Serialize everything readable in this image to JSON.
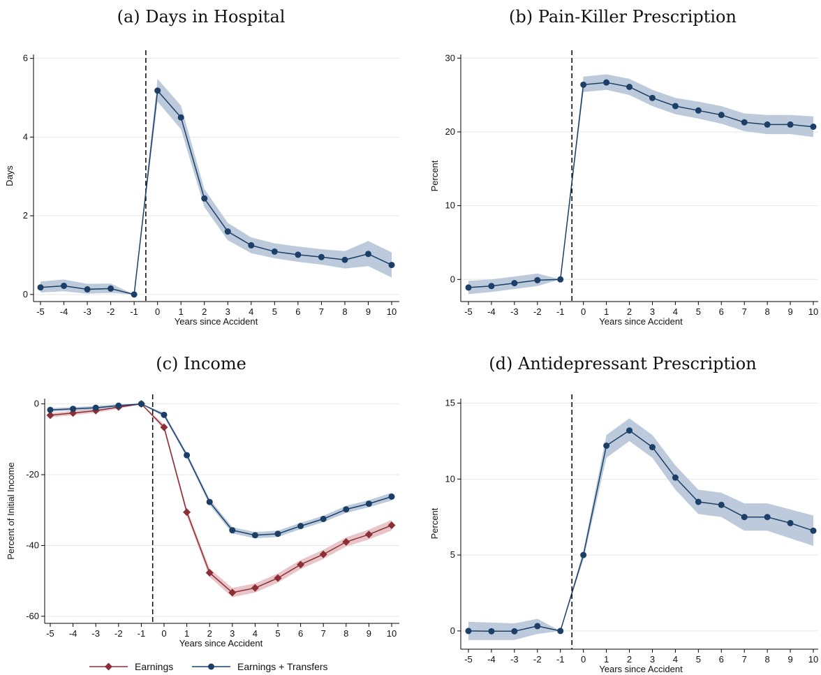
{
  "colors": {
    "navy": "#1b3f66",
    "navy_band": "#bccadb",
    "maroon": "#8b2e36",
    "maroon_band": "#e8c5c8",
    "grid": "#e6e6e6",
    "axis": "#000000"
  },
  "chart_data": [
    {
      "type": "line",
      "title": "(a) Days in Hospital",
      "xlabel": "Years since Accident",
      "ylabel": "Days",
      "ylim": [
        0,
        6
      ],
      "yticks": [
        0,
        2,
        4,
        6
      ],
      "x": [
        -5,
        -4,
        -3,
        -2,
        -1,
        0,
        1,
        2,
        3,
        4,
        5,
        6,
        7,
        8,
        9,
        10
      ],
      "event_line_x": -0.5,
      "grid": true,
      "legend": false,
      "series": [
        {
          "color": "navy",
          "marker": "circle",
          "values": [
            0.18,
            0.22,
            0.13,
            0.15,
            0.0,
            5.18,
            4.5,
            2.44,
            1.6,
            1.25,
            1.09,
            1.01,
            0.95,
            0.88,
            1.03,
            0.75
          ],
          "ci_low": [
            0.05,
            0.08,
            0.02,
            0.04,
            0.0,
            4.9,
            4.2,
            2.22,
            1.38,
            1.05,
            0.92,
            0.83,
            0.76,
            0.66,
            0.72,
            0.43
          ],
          "ci_high": [
            0.33,
            0.38,
            0.27,
            0.28,
            0.0,
            5.48,
            4.8,
            2.68,
            1.82,
            1.45,
            1.3,
            1.22,
            1.15,
            1.1,
            1.36,
            1.07
          ]
        }
      ]
    },
    {
      "type": "line",
      "title": "(b) Pain-Killer Prescription",
      "xlabel": "Years since Accident",
      "ylabel": "Percent",
      "ylim": [
        -3,
        30
      ],
      "yticks": [
        0,
        10,
        20,
        30
      ],
      "x": [
        -5,
        -4,
        -3,
        -2,
        -1,
        0,
        1,
        2,
        3,
        4,
        5,
        6,
        7,
        8,
        9,
        10
      ],
      "event_line_x": -0.5,
      "grid": true,
      "legend": false,
      "series": [
        {
          "color": "navy",
          "marker": "circle",
          "values": [
            -1.1,
            -0.9,
            -0.5,
            -0.1,
            0.0,
            26.4,
            26.7,
            26.1,
            24.6,
            23.5,
            22.9,
            22.3,
            21.3,
            21.0,
            21.0,
            20.7
          ],
          "ci_low": [
            -2.0,
            -1.7,
            -1.3,
            -0.9,
            0.0,
            25.4,
            25.7,
            25.0,
            23.5,
            22.4,
            21.8,
            21.1,
            20.1,
            19.7,
            19.7,
            19.3
          ],
          "ci_high": [
            -0.2,
            0.0,
            0.4,
            0.8,
            0.0,
            27.5,
            27.8,
            27.2,
            25.7,
            24.6,
            24.1,
            23.5,
            22.5,
            22.3,
            22.3,
            22.1
          ]
        }
      ]
    },
    {
      "type": "line",
      "title": "(c) Income",
      "xlabel": "Years since Accident",
      "ylabel": "Percent of Initial Income",
      "ylim": [
        -60,
        0
      ],
      "yticks": [
        -60,
        -40,
        -20,
        0
      ],
      "x": [
        -5,
        -4,
        -3,
        -2,
        -1,
        0,
        1,
        2,
        3,
        4,
        5,
        6,
        7,
        8,
        9,
        10
      ],
      "event_line_x": -0.5,
      "grid": true,
      "legend": "bottom",
      "series": [
        {
          "name": "Earnings",
          "color": "maroon",
          "marker": "diamond",
          "values": [
            -3.2,
            -2.6,
            -1.9,
            -0.9,
            0.0,
            -6.6,
            -30.6,
            -47.7,
            -53.3,
            -52.0,
            -49.2,
            -45.4,
            -42.5,
            -39.0,
            -36.9,
            -34.3
          ],
          "ci_low": [
            -3.8,
            -3.2,
            -2.5,
            -1.4,
            0.0,
            -7.4,
            -31.6,
            -48.9,
            -54.6,
            -53.3,
            -50.5,
            -46.7,
            -43.8,
            -40.3,
            -38.3,
            -35.8
          ],
          "ci_high": [
            -2.6,
            -2.0,
            -1.3,
            -0.4,
            0.0,
            -5.8,
            -29.6,
            -46.5,
            -52.0,
            -50.7,
            -47.9,
            -44.1,
            -41.2,
            -37.7,
            -35.5,
            -32.8
          ]
        },
        {
          "name": "Earnings + Transfers",
          "color": "navy",
          "marker": "circle",
          "values": [
            -1.7,
            -1.4,
            -1.1,
            -0.5,
            0.0,
            -3.1,
            -14.5,
            -27.7,
            -35.7,
            -37.1,
            -36.7,
            -34.5,
            -32.5,
            -29.8,
            -28.2,
            -26.2
          ],
          "ci_low": [
            -2.2,
            -1.9,
            -1.6,
            -0.9,
            0.0,
            -3.7,
            -15.2,
            -28.5,
            -36.6,
            -38.0,
            -37.6,
            -35.4,
            -33.4,
            -30.8,
            -29.2,
            -27.3
          ],
          "ci_high": [
            -1.2,
            -0.9,
            -0.6,
            -0.1,
            0.0,
            -2.5,
            -13.8,
            -26.9,
            -34.8,
            -36.2,
            -35.8,
            -33.6,
            -31.6,
            -28.8,
            -27.2,
            -25.1
          ]
        }
      ]
    },
    {
      "type": "line",
      "title": "(d) Antidepressant Prescription",
      "xlabel": "Years since Accident",
      "ylabel": "Percent",
      "ylim": [
        -1.2,
        15
      ],
      "yticks": [
        0,
        5,
        10,
        15
      ],
      "x": [
        -5,
        -4,
        -3,
        -2,
        -1,
        0,
        1,
        2,
        3,
        4,
        5,
        6,
        7,
        8,
        9,
        10
      ],
      "event_line_x": -0.5,
      "grid": true,
      "legend": false,
      "series": [
        {
          "color": "navy",
          "marker": "circle",
          "values": [
            0.0,
            -0.02,
            -0.02,
            0.32,
            0.0,
            5.0,
            12.2,
            13.2,
            12.1,
            10.1,
            8.5,
            8.3,
            7.5,
            7.5,
            7.1,
            6.6
          ],
          "ci_low": [
            -0.6,
            -0.6,
            -0.6,
            -0.2,
            0.0,
            4.7,
            11.4,
            12.5,
            11.4,
            9.3,
            7.7,
            7.5,
            6.6,
            6.6,
            6.1,
            5.6
          ],
          "ci_high": [
            0.6,
            0.55,
            0.5,
            0.8,
            0.0,
            5.3,
            12.9,
            14.0,
            12.9,
            10.9,
            9.3,
            9.1,
            8.4,
            8.4,
            8.0,
            7.6
          ]
        }
      ]
    }
  ]
}
